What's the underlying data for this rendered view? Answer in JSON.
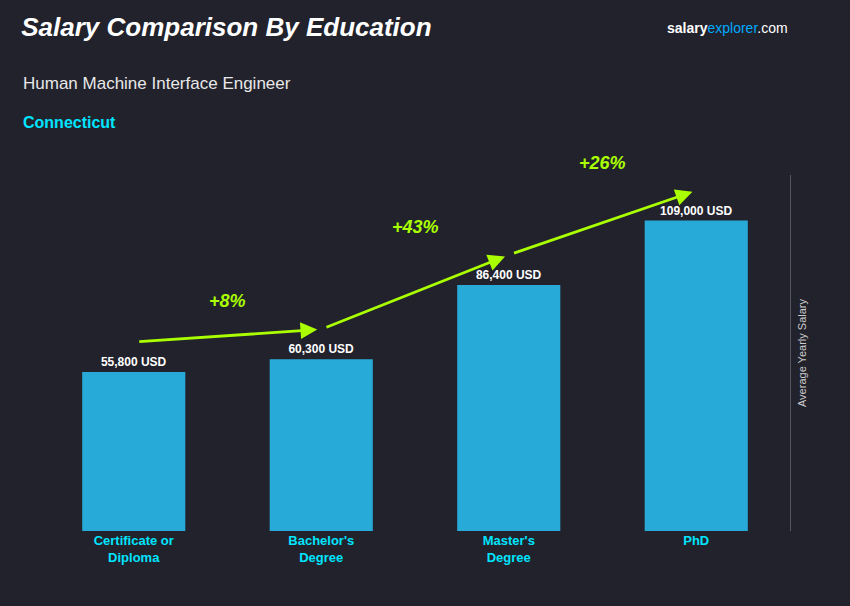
{
  "chart_data": {
    "type": "bar",
    "title": "Salary Comparison By Education",
    "subtitle": [
      "Human Machine Interface Engineer",
      "Connecticut"
    ],
    "categories": [
      "Certificate or\nDiploma",
      "Bachelor's\nDegree",
      "Master's\nDegree",
      "PhD"
    ],
    "values": [
      55800,
      60300,
      86400,
      109000
    ],
    "value_labels": [
      "55,800 USD",
      "60,300 USD",
      "86,400 USD",
      "109,000 USD"
    ],
    "data_labels": true,
    "color": "#29b6e8",
    "ylabel": "Average Yearly Salary",
    "ylim": [
      0,
      125000
    ],
    "tick_labels": "x",
    "grid": false,
    "annotations": [
      {
        "text": "+8%",
        "from": "Certificate or\nDiploma",
        "to": "Bachelor's\nDegree"
      },
      {
        "text": "+43%",
        "from": "Bachelor's\nDegree",
        "to": "Master's\nDegree"
      },
      {
        "text": "+26%",
        "from": "Master's\nDegree",
        "to": "PhD"
      },
      {
        "text": "salary"
      },
      {
        "text": "explorer"
      },
      {
        "text": ".com"
      }
    ]
  }
}
